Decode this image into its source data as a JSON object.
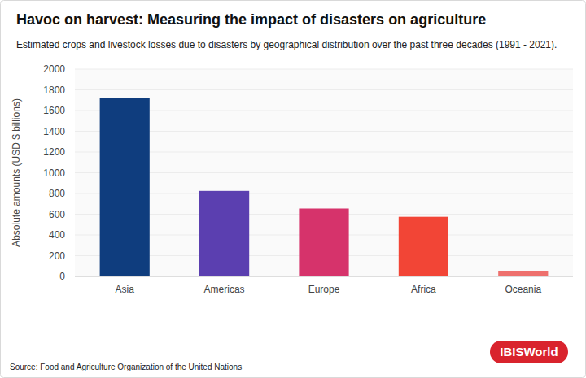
{
  "chart_data": {
    "type": "bar",
    "title": "Havoc on harvest: Measuring the impact of disasters on agriculture",
    "subtitle": "Estimated crops and livestock losses due to disasters by geographical distribution over the past three decades (1991 - 2021).",
    "y_label": "Absolute amounts (USD $ billions)",
    "source": "Source: Food and Agriculture Organization of the United Nations",
    "brand": "IBISWorld",
    "categories": [
      "Asia",
      "Americas",
      "Europe",
      "Africa",
      "Oceania"
    ],
    "values": [
      1720,
      825,
      655,
      575,
      55
    ],
    "colors": [
      "#0f3d7e",
      "#5b3fb0",
      "#d6336b",
      "#f24536",
      "#ee706d"
    ],
    "ylim": [
      0,
      2000
    ],
    "yticks": [
      0,
      200,
      400,
      600,
      800,
      1000,
      1200,
      1400,
      1600,
      1800,
      2000
    ],
    "grid": true
  }
}
